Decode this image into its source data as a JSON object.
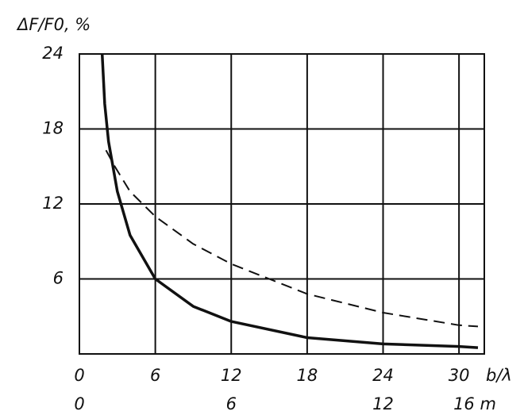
{
  "chart_data": {
    "type": "line",
    "y_label": "ΔF/F0, %",
    "x_label": "b/λ",
    "xlim": [
      0,
      32
    ],
    "xticks": [
      0,
      6,
      12,
      18,
      24,
      30
    ],
    "x2lim": [
      0,
      16
    ],
    "x2ticks": [
      0,
      6,
      12,
      {
        "value": 16,
        "label": "16 m"
      }
    ],
    "ylim": [
      0,
      24
    ],
    "yticks": [
      6,
      12,
      18,
      24
    ],
    "grid": true,
    "series": [
      {
        "color": "#111111",
        "style": "solid",
        "x": [
          1.8,
          2.0,
          2.3,
          3,
          4,
          6,
          9,
          12,
          18,
          24,
          30,
          31.5
        ],
        "values": [
          24,
          20,
          17,
          13,
          9.5,
          6,
          3.8,
          2.6,
          1.3,
          0.8,
          0.6,
          0.5
        ]
      },
      {
        "color": "#111111",
        "style": "dashed",
        "x": [
          2.1,
          2.8,
          4,
          6,
          9,
          12,
          18,
          24,
          30,
          31.5
        ],
        "values": [
          16.3,
          15,
          13,
          11,
          8.8,
          7.2,
          4.8,
          3.3,
          2.3,
          2.2
        ]
      }
    ]
  }
}
